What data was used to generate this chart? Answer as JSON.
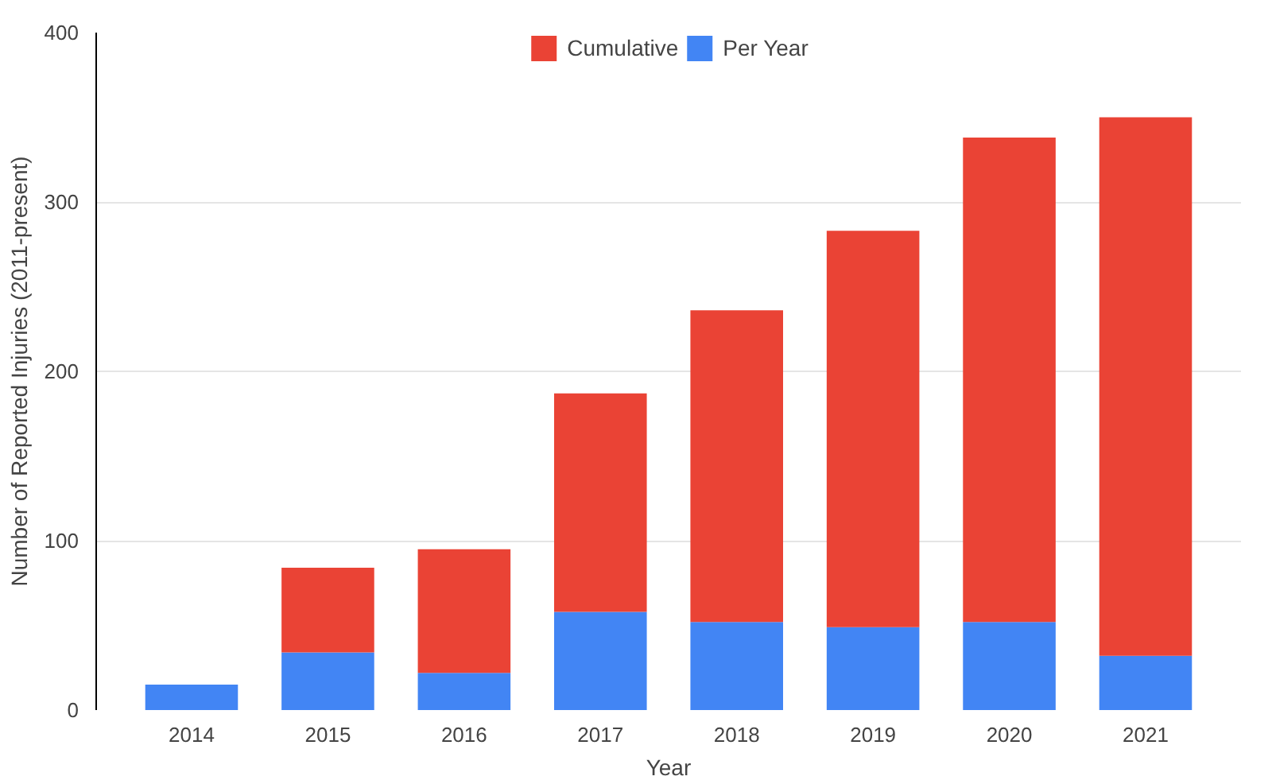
{
  "chart_data": {
    "type": "bar",
    "stacked": true,
    "xlabel": "Year",
    "ylabel": "Number of Reported Injuries (2011-present)",
    "categories": [
      "2014",
      "2015",
      "2016",
      "2017",
      "2018",
      "2019",
      "2020",
      "2021"
    ],
    "series": [
      {
        "name": "Per Year",
        "color": "#4285f4",
        "values": [
          15,
          34,
          22,
          58,
          52,
          49,
          52,
          32
        ]
      },
      {
        "name": "Cumulative",
        "color": "#ea4335",
        "values": [
          0,
          50,
          73,
          129,
          184,
          234,
          286,
          318
        ]
      }
    ],
    "ylim": [
      0,
      400
    ],
    "yticks": [
      0,
      100,
      200,
      300,
      400
    ],
    "grid": "y",
    "legend": "top"
  }
}
